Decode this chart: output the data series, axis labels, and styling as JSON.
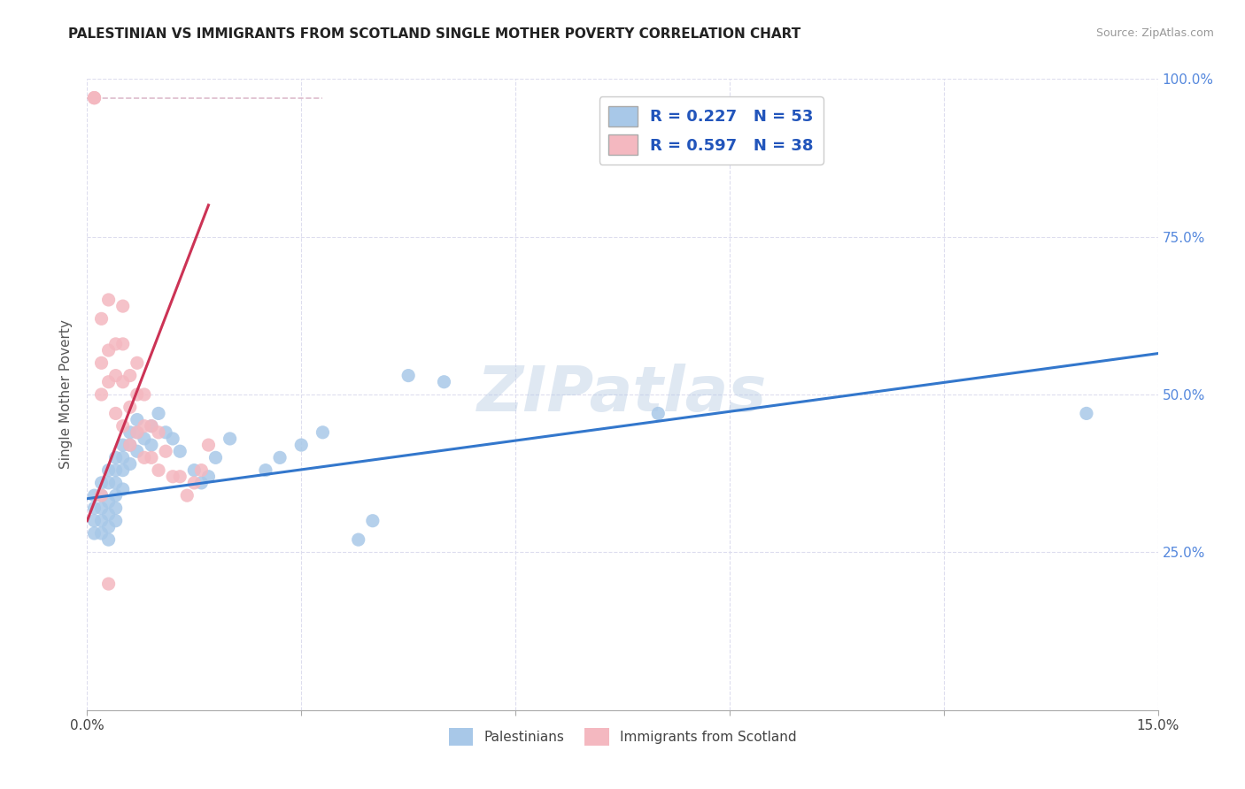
{
  "title": "PALESTINIAN VS IMMIGRANTS FROM SCOTLAND SINGLE MOTHER POVERTY CORRELATION CHART",
  "source": "Source: ZipAtlas.com",
  "ylabel": "Single Mother Poverty",
  "legend_labels": [
    "Palestinians",
    "Immigrants from Scotland"
  ],
  "legend_r": [
    "R = 0.227",
    "R = 0.597"
  ],
  "legend_n": [
    "N = 53",
    "N = 38"
  ],
  "blue_color": "#a8c8e8",
  "pink_color": "#f4b8c0",
  "blue_line_color": "#3377cc",
  "pink_line_color": "#cc3355",
  "dashed_line_color": "#ddbbcc",
  "background_color": "#ffffff",
  "watermark": "ZIPatlas",
  "blue_scatter_x": [
    0.001,
    0.001,
    0.001,
    0.001,
    0.002,
    0.002,
    0.002,
    0.002,
    0.002,
    0.003,
    0.003,
    0.003,
    0.003,
    0.003,
    0.003,
    0.004,
    0.004,
    0.004,
    0.004,
    0.004,
    0.004,
    0.005,
    0.005,
    0.005,
    0.005,
    0.006,
    0.006,
    0.006,
    0.007,
    0.007,
    0.007,
    0.008,
    0.009,
    0.009,
    0.01,
    0.011,
    0.012,
    0.013,
    0.015,
    0.016,
    0.017,
    0.018,
    0.02,
    0.025,
    0.027,
    0.03,
    0.033,
    0.038,
    0.04,
    0.045,
    0.05,
    0.08,
    0.14
  ],
  "blue_scatter_y": [
    0.34,
    0.32,
    0.3,
    0.28,
    0.36,
    0.34,
    0.32,
    0.3,
    0.28,
    0.38,
    0.36,
    0.33,
    0.31,
    0.29,
    0.27,
    0.4,
    0.38,
    0.36,
    0.34,
    0.32,
    0.3,
    0.42,
    0.4,
    0.38,
    0.35,
    0.44,
    0.42,
    0.39,
    0.46,
    0.44,
    0.41,
    0.43,
    0.45,
    0.42,
    0.47,
    0.44,
    0.43,
    0.41,
    0.38,
    0.36,
    0.37,
    0.4,
    0.43,
    0.38,
    0.4,
    0.42,
    0.44,
    0.27,
    0.3,
    0.53,
    0.52,
    0.47,
    0.47
  ],
  "pink_scatter_x": [
    0.001,
    0.001,
    0.001,
    0.002,
    0.002,
    0.002,
    0.002,
    0.003,
    0.003,
    0.003,
    0.003,
    0.004,
    0.004,
    0.004,
    0.005,
    0.005,
    0.005,
    0.005,
    0.006,
    0.006,
    0.006,
    0.007,
    0.007,
    0.007,
    0.008,
    0.008,
    0.008,
    0.009,
    0.009,
    0.01,
    0.01,
    0.011,
    0.012,
    0.013,
    0.014,
    0.015,
    0.016,
    0.017
  ],
  "pink_scatter_y": [
    0.97,
    0.97,
    0.97,
    0.62,
    0.55,
    0.5,
    0.34,
    0.65,
    0.57,
    0.52,
    0.2,
    0.58,
    0.53,
    0.47,
    0.64,
    0.58,
    0.52,
    0.45,
    0.53,
    0.48,
    0.42,
    0.55,
    0.5,
    0.44,
    0.5,
    0.45,
    0.4,
    0.45,
    0.4,
    0.44,
    0.38,
    0.41,
    0.37,
    0.37,
    0.34,
    0.36,
    0.38,
    0.42
  ],
  "blue_line_x0": 0.0,
  "blue_line_x1": 0.15,
  "blue_line_y0": 0.335,
  "blue_line_y1": 0.565,
  "pink_line_x0": 0.0,
  "pink_line_x1": 0.017,
  "pink_line_y0": 0.3,
  "pink_line_y1": 0.8,
  "dashed_line_x0": 0.0,
  "dashed_line_x1": 0.033,
  "dashed_line_y0": 0.97,
  "dashed_line_y1": 0.97,
  "xlim": [
    0.0,
    0.15
  ],
  "ylim": [
    0.0,
    1.0
  ],
  "xtick_positions": [
    0.0,
    0.03,
    0.06,
    0.09,
    0.12,
    0.15
  ],
  "xtick_labels": [
    "0.0%",
    "",
    "",
    "",
    "",
    "15.0%"
  ],
  "ytick_positions": [
    0.0,
    0.25,
    0.5,
    0.75,
    1.0
  ],
  "ytick_labels": [
    "",
    "25.0%",
    "50.0%",
    "75.0%",
    "100.0%"
  ]
}
